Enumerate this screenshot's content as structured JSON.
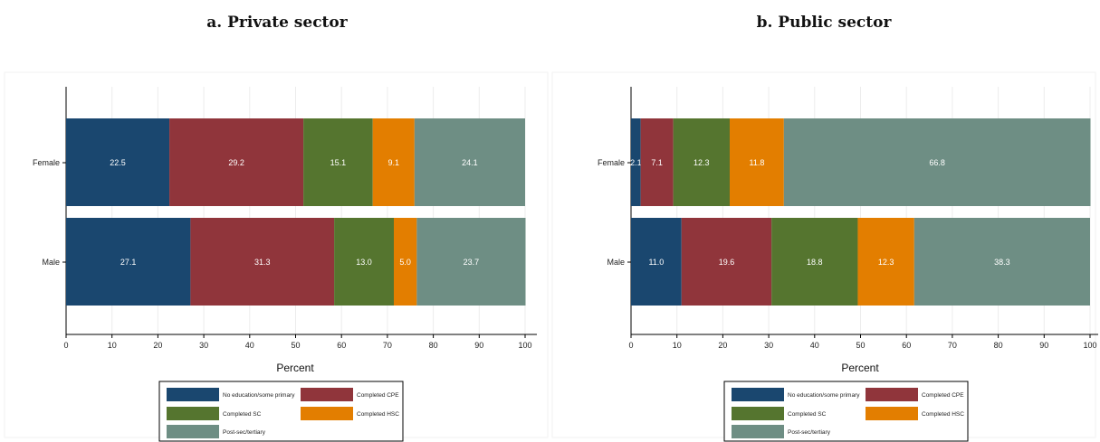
{
  "colors": {
    "no_edu": "#1a476f",
    "cpe": "#90353b",
    "sc": "#55752f",
    "hsc": "#e37e00",
    "post": "#6e8e84"
  },
  "chart_data": [
    {
      "type": "bar",
      "orientation": "horizontal",
      "stacked": true,
      "title": "a. Private sector",
      "xlabel": "Percent",
      "xlim": [
        0,
        100
      ],
      "xticks": [
        "0",
        "10",
        "20",
        "30",
        "40",
        "50",
        "60",
        "70",
        "80",
        "90",
        "100"
      ],
      "grid": true,
      "legend_position": "bottom",
      "categories": [
        "Female",
        "Male"
      ],
      "series": [
        {
          "name": "No education/some primary",
          "color_key": "no_edu",
          "values": [
            22.5,
            27.1
          ],
          "labels": [
            "22.5",
            "27.1"
          ]
        },
        {
          "name": "Completed CPE",
          "color_key": "cpe",
          "values": [
            29.2,
            31.3
          ],
          "labels": [
            "29.2",
            "31.3"
          ]
        },
        {
          "name": "Completed SC",
          "color_key": "sc",
          "values": [
            15.1,
            13.0
          ],
          "labels": [
            "15.1",
            "13.0"
          ]
        },
        {
          "name": "Completed HSC",
          "color_key": "hsc",
          "values": [
            9.1,
            5.0
          ],
          "labels": [
            "9.1",
            "5.0"
          ]
        },
        {
          "name": "Post-sec/tertiary",
          "color_key": "post",
          "values": [
            24.1,
            23.7
          ],
          "labels": [
            "24.1",
            "23.7"
          ]
        }
      ]
    },
    {
      "type": "bar",
      "orientation": "horizontal",
      "stacked": true,
      "title": "b. Public sector",
      "xlabel": "Percent",
      "xlim": [
        0,
        100
      ],
      "xticks": [
        "0",
        "10",
        "20",
        "30",
        "40",
        "50",
        "60",
        "70",
        "80",
        "90",
        "100"
      ],
      "grid": true,
      "legend_position": "bottom",
      "categories": [
        "Female",
        "Male"
      ],
      "series": [
        {
          "name": "No education/some primary",
          "color_key": "no_edu",
          "values": [
            2.1,
            11.0
          ],
          "labels": [
            "2.1",
            "11.0"
          ]
        },
        {
          "name": "Completed CPE",
          "color_key": "cpe",
          "values": [
            7.1,
            19.6
          ],
          "labels": [
            "7.1",
            "19.6"
          ]
        },
        {
          "name": "Completed SC",
          "color_key": "sc",
          "values": [
            12.3,
            18.8
          ],
          "labels": [
            "12.3",
            "18.8"
          ]
        },
        {
          "name": "Completed HSC",
          "color_key": "hsc",
          "values": [
            11.8,
            12.3
          ],
          "labels": [
            "11.8",
            "12.3"
          ]
        },
        {
          "name": "Post-sec/tertiary",
          "color_key": "post",
          "values": [
            66.8,
            38.3
          ],
          "labels": [
            "66.8",
            "38.3"
          ]
        }
      ]
    }
  ]
}
